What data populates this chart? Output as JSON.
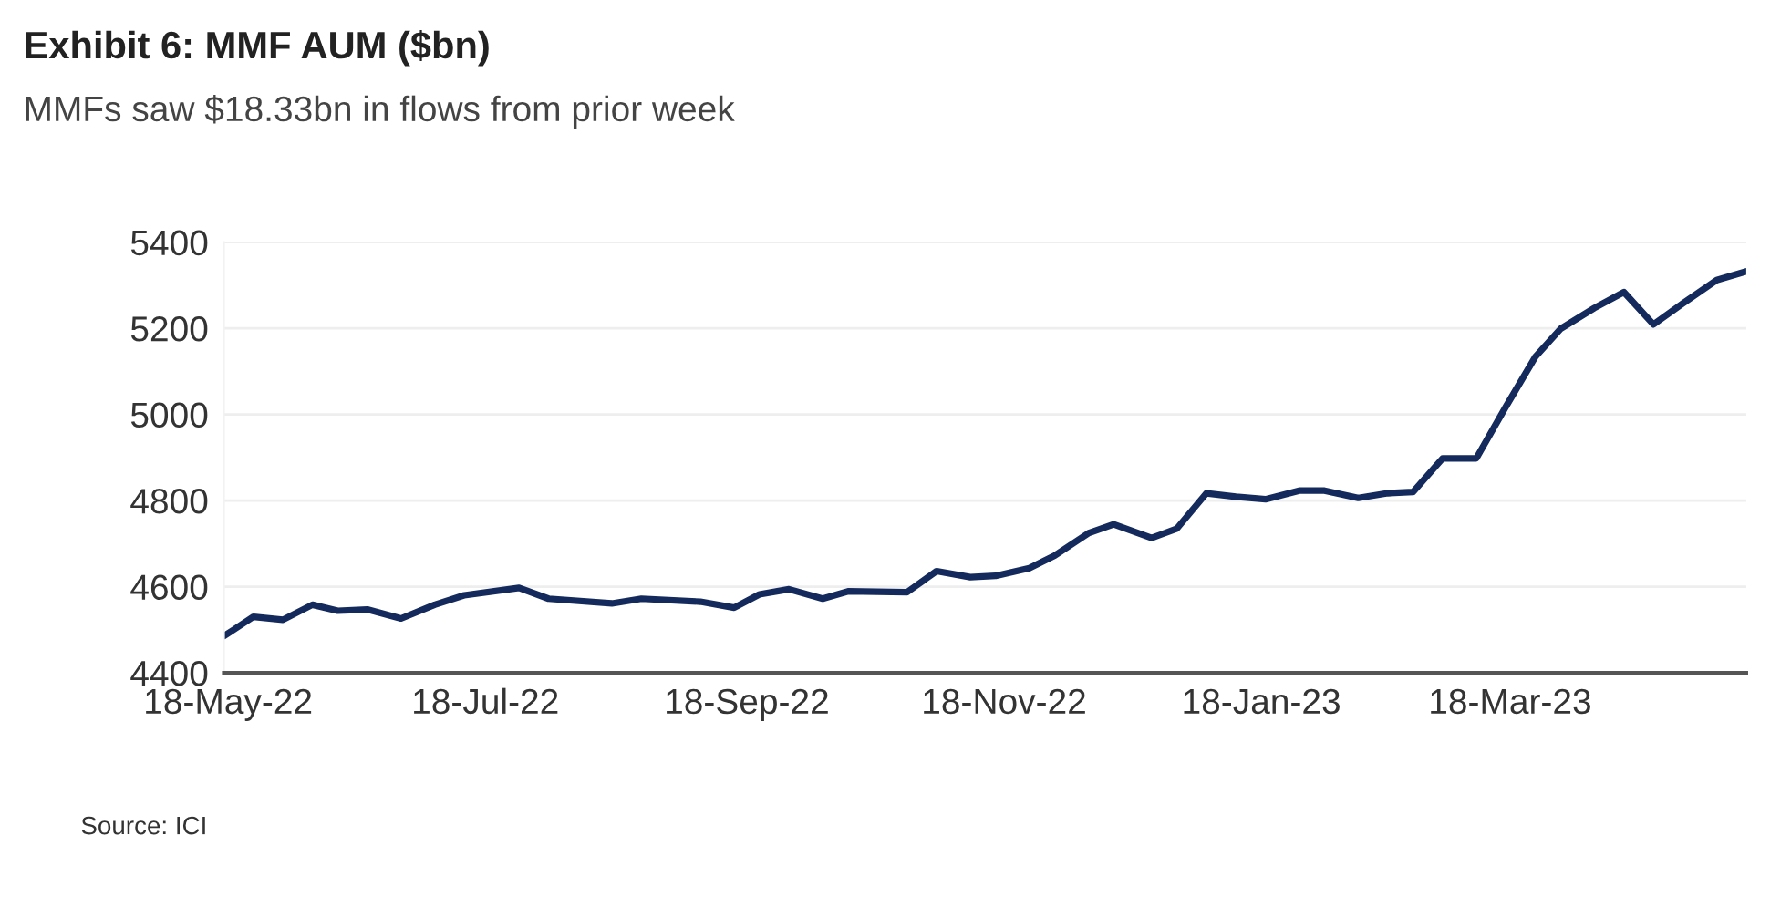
{
  "chart_data": {
    "type": "line",
    "title": "Exhibit 6: MMF AUM ($bn)",
    "subtitle": "MMFs saw $18.33bn in flows from prior week",
    "x": [
      "2022-05-17",
      "2022-05-24",
      "2022-05-31",
      "2022-06-07",
      "2022-06-13",
      "2022-06-20",
      "2022-06-28",
      "2022-07-06",
      "2022-07-13",
      "2022-07-26",
      "2022-08-02",
      "2022-08-17",
      "2022-08-24",
      "2022-09-07",
      "2022-09-15",
      "2022-09-21",
      "2022-09-28",
      "2022-10-06",
      "2022-10-12",
      "2022-10-26",
      "2022-11-02",
      "2022-11-10",
      "2022-11-16",
      "2022-11-24",
      "2022-11-30",
      "2022-12-08",
      "2022-12-14",
      "2022-12-23",
      "2022-12-29",
      "2023-01-05",
      "2023-01-12",
      "2023-01-19",
      "2023-01-27",
      "2023-02-02",
      "2023-02-10",
      "2023-02-17",
      "2023-02-23",
      "2023-03-02",
      "2023-03-10",
      "2023-03-17",
      "2023-03-24",
      "2023-03-30",
      "2023-04-07",
      "2023-04-14",
      "2023-04-21",
      "2023-04-28",
      "2023-05-06",
      "2023-05-13"
    ],
    "series": [
      {
        "color": "#142a5c",
        "values": [
          4485,
          4530,
          4523,
          4558,
          4544,
          4547,
          4526,
          4558,
          4580,
          4597,
          4572,
          4561,
          4572,
          4565,
          4551,
          4582,
          4594,
          4572,
          4589,
          4587,
          4636,
          4622,
          4625,
          4643,
          4672,
          4724,
          4745,
          4713,
          4735,
          4817,
          4809,
          4803,
          4823,
          4823,
          4806,
          4817,
          4820,
          4898,
          4898,
          5018,
          5134,
          5199,
          5247,
          5284,
          5209,
          5258,
          5312,
          5332
        ]
      }
    ],
    "xlim": [
      "2022-05-17",
      "2023-05-13"
    ],
    "xticks": [
      {
        "value": "2022-05-18",
        "label": "18-May-22"
      },
      {
        "value": "2022-07-18",
        "label": "18-Jul-22"
      },
      {
        "value": "2022-09-18",
        "label": "18-Sep-22"
      },
      {
        "value": "2022-11-18",
        "label": "18-Nov-22"
      },
      {
        "value": "2023-01-18",
        "label": "18-Jan-23"
      },
      {
        "value": "2023-03-18",
        "label": "18-Mar-23"
      }
    ],
    "ylim": [
      4400,
      5400
    ],
    "yticks": [
      4400,
      4600,
      4800,
      5000,
      5200,
      5400
    ],
    "grid": "y",
    "line_style": "solid",
    "marker": "none",
    "annotations": [
      "Source: ICI"
    ]
  }
}
